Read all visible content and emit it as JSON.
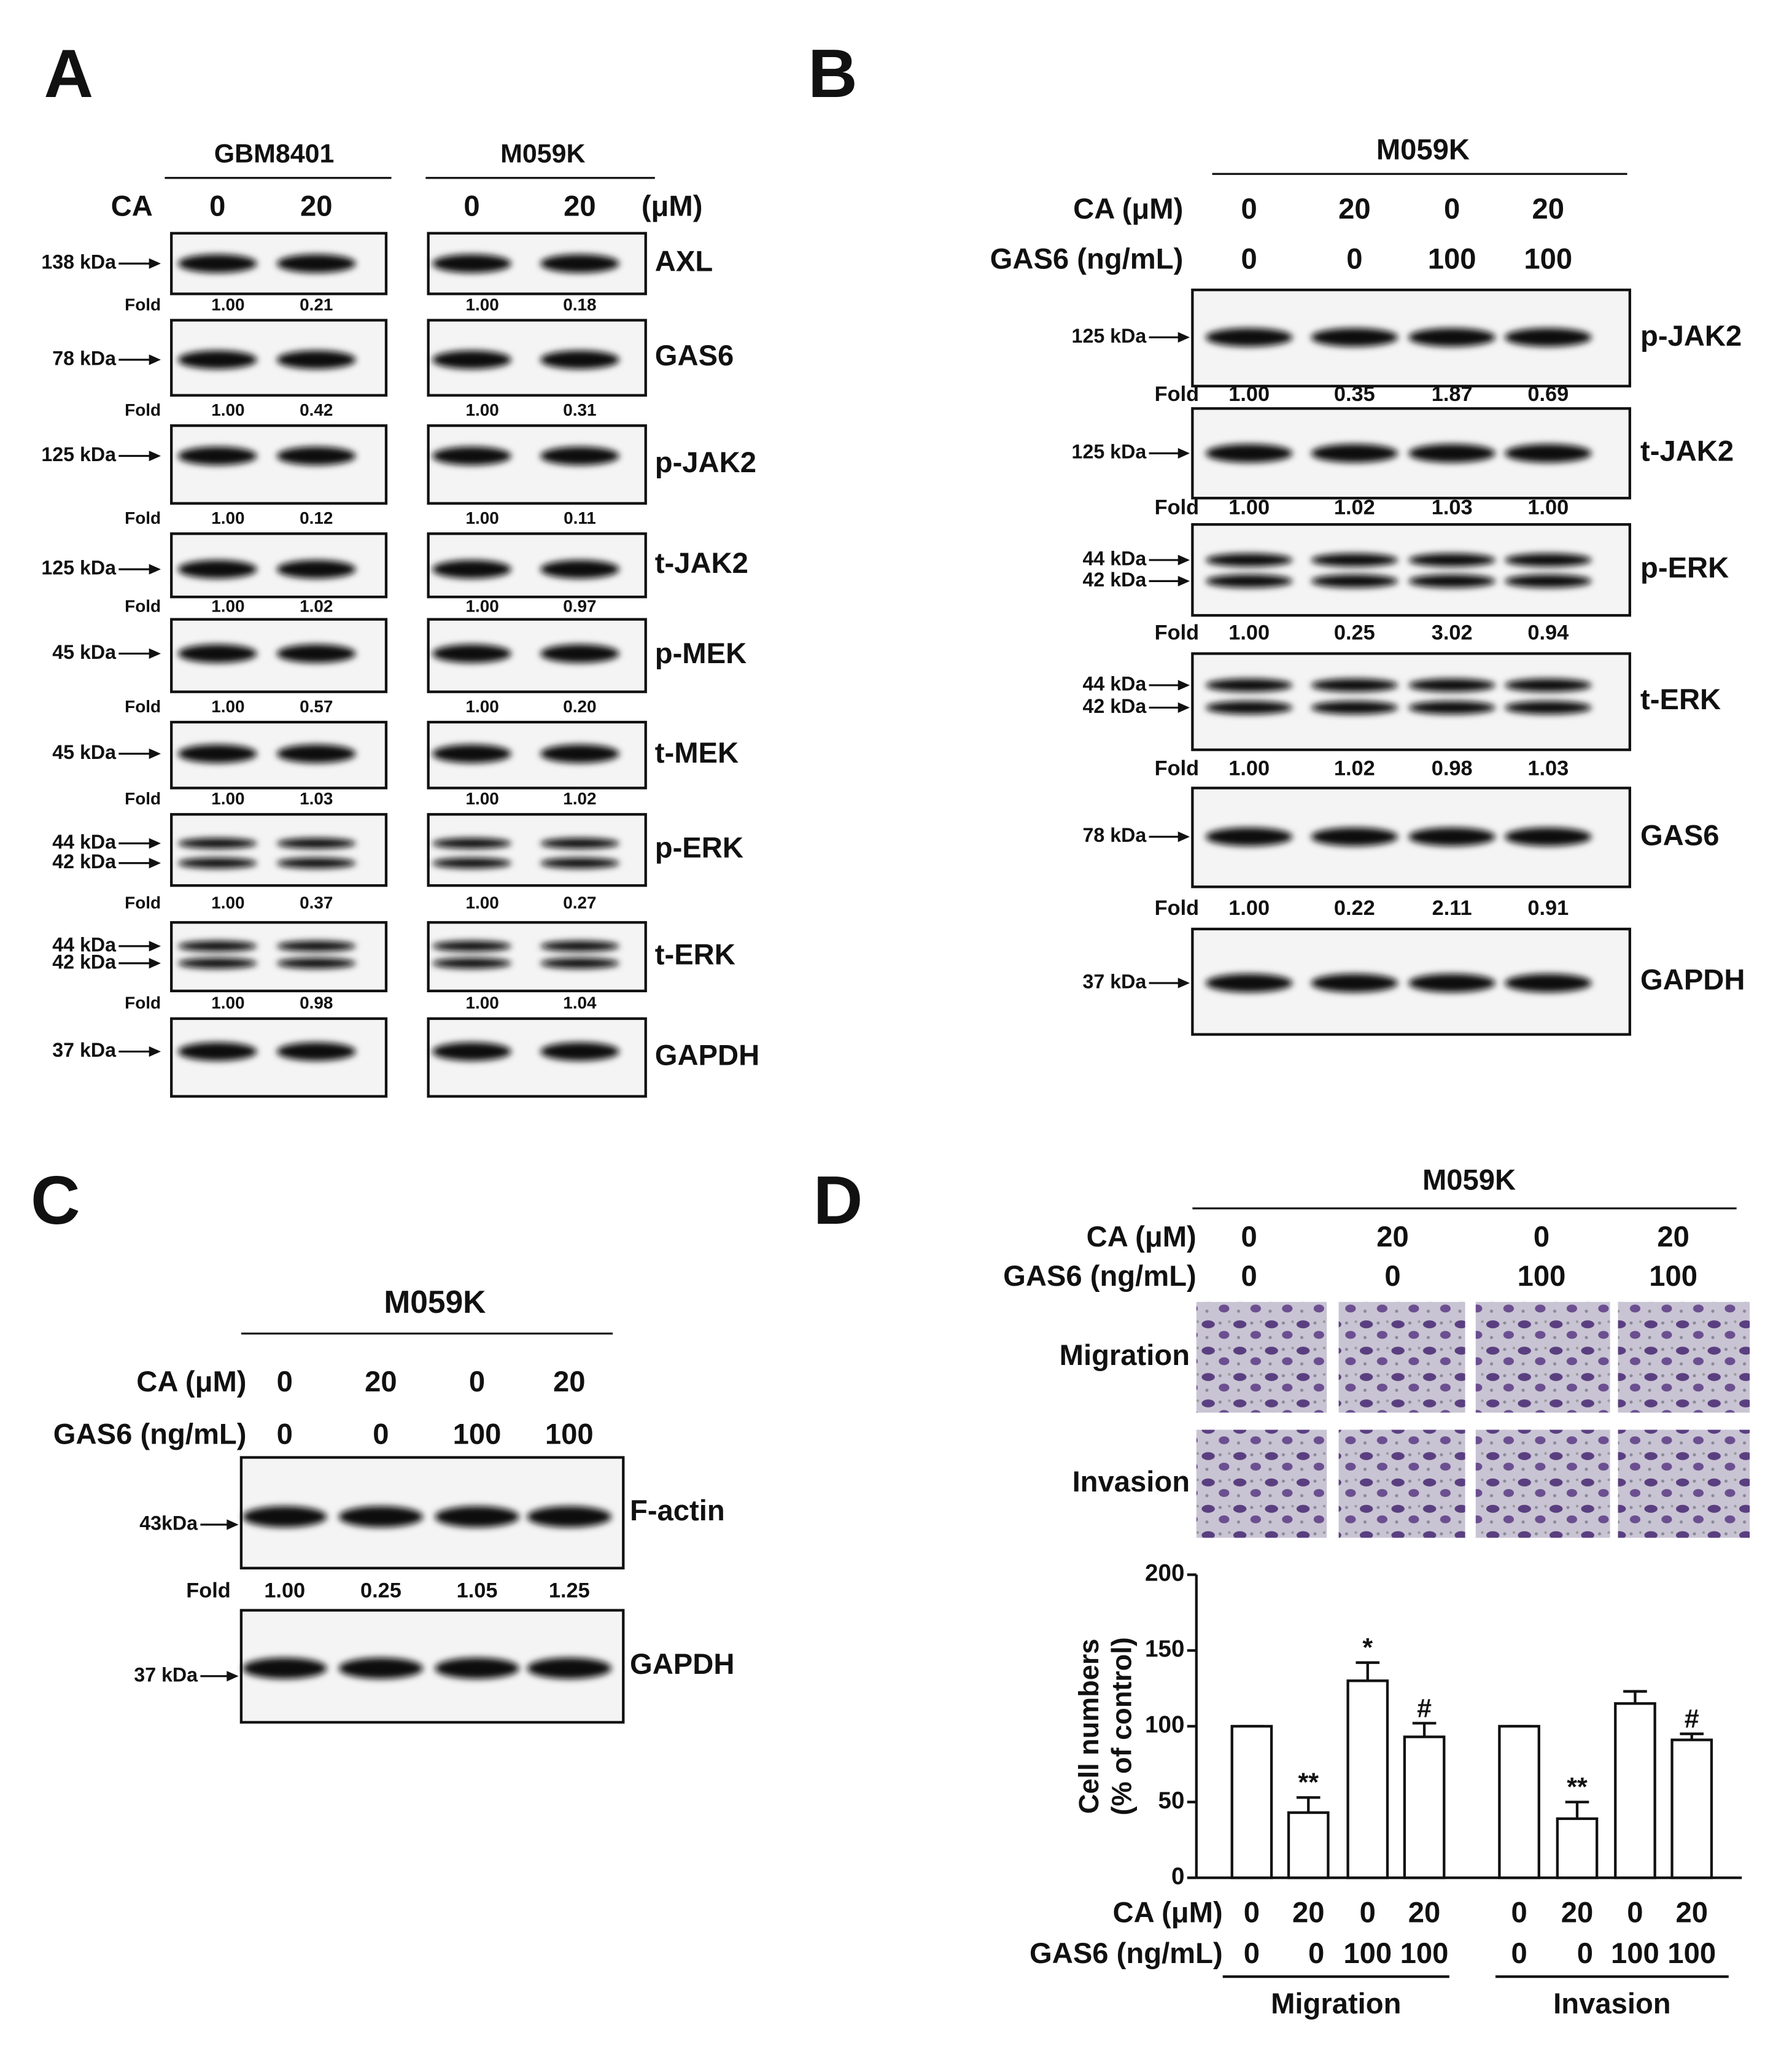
{
  "panel_labels": [
    "A",
    "B",
    "C",
    "D"
  ],
  "panel_a": {
    "groups": [
      {
        "name": "GBM8401",
        "ca": [
          "0",
          "20"
        ]
      },
      {
        "name": "M059K",
        "ca": [
          "0",
          "20"
        ]
      }
    ],
    "ca_label": "CA",
    "unit": "(μM)",
    "fold_label": "Fold",
    "blots": [
      {
        "protein": "AXL",
        "markers": [
          "138 kDa"
        ],
        "folds": [
          [
            "1.00",
            "0.21"
          ],
          [
            "1.00",
            "0.18"
          ]
        ]
      },
      {
        "protein": "GAS6",
        "markers": [
          "78 kDa"
        ],
        "folds": [
          [
            "1.00",
            "0.42"
          ],
          [
            "1.00",
            "0.31"
          ]
        ]
      },
      {
        "protein": "p-JAK2",
        "markers": [
          "125 kDa"
        ],
        "folds": [
          [
            "1.00",
            "0.12"
          ],
          [
            "1.00",
            "0.11"
          ]
        ]
      },
      {
        "protein": "t-JAK2",
        "markers": [
          "125 kDa"
        ],
        "folds": [
          [
            "1.00",
            "1.02"
          ],
          [
            "1.00",
            "0.97"
          ]
        ]
      },
      {
        "protein": "p-MEK",
        "markers": [
          "45 kDa"
        ],
        "folds": [
          [
            "1.00",
            "0.57"
          ],
          [
            "1.00",
            "0.20"
          ]
        ]
      },
      {
        "protein": "t-MEK",
        "markers": [
          "45 kDa"
        ],
        "folds": [
          [
            "1.00",
            "1.03"
          ],
          [
            "1.00",
            "1.02"
          ]
        ]
      },
      {
        "protein": "p-ERK",
        "markers": [
          "44 kDa",
          "42 kDa"
        ],
        "folds": [
          [
            "1.00",
            "0.37"
          ],
          [
            "1.00",
            "0.27"
          ]
        ]
      },
      {
        "protein": "t-ERK",
        "markers": [
          "44 kDa",
          "42 kDa"
        ],
        "folds": [
          [
            "1.00",
            "0.98"
          ],
          [
            "1.00",
            "1.04"
          ]
        ]
      },
      {
        "protein": "GAPDH",
        "markers": [
          "37 kDa"
        ]
      }
    ]
  },
  "panel_b": {
    "header": "M059K",
    "ca_label": "CA (μM)",
    "ca": [
      "0",
      "20",
      "0",
      "20"
    ],
    "gas6_label": "GAS6 (ng/mL)",
    "gas6": [
      "0",
      "0",
      "100",
      "100"
    ],
    "fold_label": "Fold",
    "blots": [
      {
        "protein": "p-JAK2",
        "markers": [
          "125 kDa"
        ],
        "folds": [
          "1.00",
          "0.35",
          "1.87",
          "0.69"
        ]
      },
      {
        "protein": "t-JAK2",
        "markers": [
          "125 kDa"
        ],
        "folds": [
          "1.00",
          "1.02",
          "1.03",
          "1.00"
        ]
      },
      {
        "protein": "p-ERK",
        "markers": [
          "44 kDa",
          "42 kDa"
        ],
        "folds": [
          "1.00",
          "0.25",
          "3.02",
          "0.94"
        ]
      },
      {
        "protein": "t-ERK",
        "markers": [
          "44 kDa",
          "42 kDa"
        ],
        "folds": [
          "1.00",
          "1.02",
          "0.98",
          "1.03"
        ]
      },
      {
        "protein": "GAS6",
        "markers": [
          "78 kDa"
        ],
        "folds": [
          "1.00",
          "0.22",
          "2.11",
          "0.91"
        ]
      },
      {
        "protein": "GAPDH",
        "markers": [
          "37 kDa"
        ]
      }
    ]
  },
  "panel_c": {
    "header": "M059K",
    "ca_label": "CA (μM)",
    "ca": [
      "0",
      "20",
      "0",
      "20"
    ],
    "gas6_label": "GAS6 (ng/mL)",
    "gas6": [
      "0",
      "0",
      "100",
      "100"
    ],
    "fold_label": "Fold",
    "blots": [
      {
        "protein": "F-actin",
        "markers": [
          "43kDa"
        ],
        "folds": [
          "1.00",
          "0.25",
          "1.05",
          "1.25"
        ]
      },
      {
        "protein": "GAPDH",
        "markers": [
          "37 kDa"
        ]
      }
    ]
  },
  "panel_d": {
    "header": "M059K",
    "ca_label": "CA (μM)",
    "ca": [
      "0",
      "20",
      "0",
      "20"
    ],
    "gas6_label": "GAS6 (ng/mL)",
    "gas6": [
      "0",
      "0",
      "100",
      "100"
    ],
    "image_rows": [
      "Migration",
      "Invasion"
    ]
  },
  "chart_data": {
    "type": "bar",
    "y_label": [
      "Cell numbers",
      "(% of control)"
    ],
    "ylim": [
      0,
      200
    ],
    "yticks": [
      0,
      50,
      100,
      150,
      200
    ],
    "color": "#ffffff",
    "x_rows": {
      "ca_label": "CA (μM)",
      "ca": [
        "0",
        "20",
        "0",
        "20"
      ],
      "gas6_label": "GAS6 (ng/mL)",
      "gas6": [
        "0",
        "0",
        "100",
        "100"
      ]
    },
    "groups": [
      {
        "name": "Migration",
        "values": [
          100,
          43,
          130,
          93
        ],
        "errors": [
          0,
          10,
          12,
          9
        ],
        "annotations": [
          null,
          "**",
          "*",
          "#"
        ]
      },
      {
        "name": "Invasion",
        "values": [
          100,
          39,
          115,
          91
        ],
        "errors": [
          0,
          11,
          8,
          4
        ],
        "annotations": [
          null,
          "**",
          null,
          "#"
        ]
      }
    ]
  }
}
